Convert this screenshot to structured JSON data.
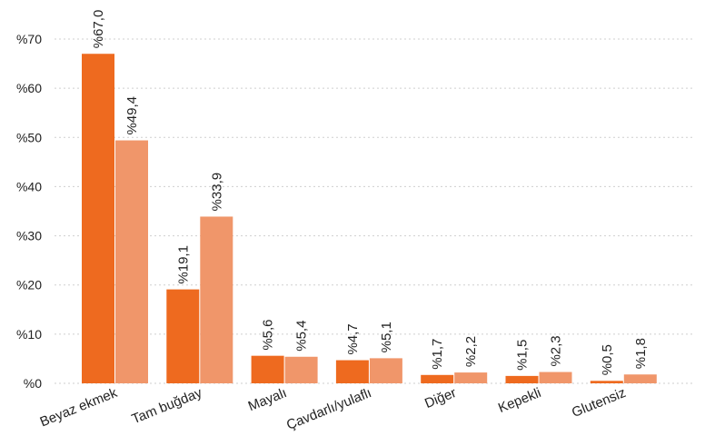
{
  "chart_data": {
    "type": "bar",
    "title": "",
    "xlabel": "",
    "ylabel": "",
    "ylim": [
      0,
      70
    ],
    "yticks": [
      0,
      10,
      20,
      30,
      40,
      50,
      60,
      70
    ],
    "ytick_labels": [
      "%0",
      "%10",
      "%20",
      "%30",
      "%40",
      "%50",
      "%60",
      "%70"
    ],
    "grid": true,
    "legend": "none",
    "categories": [
      "Beyaz ekmek",
      "Tam buğday",
      "Mayalı",
      "Çavdarlı/yulaflı",
      "Diğer",
      "Kepekli",
      "Glutensiz"
    ],
    "series": [
      {
        "values": [
          67.0,
          19.1,
          5.6,
          4.7,
          1.7,
          1.5,
          0.5
        ],
        "labels": [
          "%67,0",
          "%19,1",
          "%5,6",
          "%4,7",
          "%1,7",
          "%1,5",
          "%0,5"
        ],
        "color": "#ee6a1f"
      },
      {
        "values": [
          49.4,
          33.9,
          5.4,
          5.1,
          2.2,
          2.3,
          1.8
        ],
        "labels": [
          "%49,4",
          "%33,9",
          "%5,4",
          "%5,1",
          "%2,2",
          "%2,3",
          "%1,8"
        ],
        "color": "#f0966a"
      }
    ]
  }
}
